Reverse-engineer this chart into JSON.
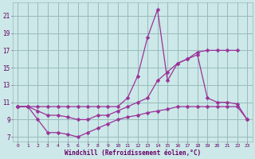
{
  "bg_color": "#cce8e8",
  "line_color": "#993399",
  "grid_color": "#99bbbb",
  "xlabel": "Windchill (Refroidissement éolien,°C)",
  "xlabel_color": "#660066",
  "tick_color": "#660066",
  "xlim": [
    -0.5,
    23.5
  ],
  "ylim": [
    6.5,
    22.5
  ],
  "yticks": [
    7,
    9,
    11,
    13,
    15,
    17,
    19,
    21
  ],
  "xticks": [
    0,
    1,
    2,
    3,
    4,
    5,
    6,
    7,
    8,
    9,
    10,
    11,
    12,
    13,
    14,
    15,
    16,
    17,
    18,
    19,
    20,
    21,
    22,
    23
  ],
  "line1_x": [
    0,
    1,
    2,
    3,
    4,
    5,
    6,
    7,
    8,
    9,
    10,
    11,
    12,
    13,
    14,
    15,
    16,
    17,
    18,
    19,
    20,
    21,
    22
  ],
  "line1_y": [
    10.5,
    10.5,
    10.5,
    10.5,
    10.5,
    10.5,
    10.5,
    10.5,
    10.5,
    10.5,
    10.5,
    11.5,
    14.0,
    18.5,
    21.7,
    13.5,
    15.5,
    16.0,
    16.8,
    17.0,
    17.0,
    17.0,
    17.0
  ],
  "line2_x": [
    0,
    1,
    2,
    3,
    4,
    5,
    6,
    7,
    8,
    9,
    10,
    11,
    12,
    13,
    14,
    15,
    16,
    17,
    18,
    19,
    20,
    21,
    22,
    23
  ],
  "line2_y": [
    10.5,
    10.5,
    10.0,
    9.5,
    9.5,
    9.3,
    9.0,
    9.0,
    9.5,
    9.5,
    10.0,
    10.5,
    11.0,
    11.5,
    13.5,
    14.5,
    15.5,
    16.0,
    16.5,
    11.5,
    11.0,
    11.0,
    10.8,
    9.0
  ],
  "line3_x": [
    0,
    1,
    2,
    3,
    4,
    5,
    6,
    7,
    8,
    9,
    10,
    11,
    12,
    13,
    14,
    15,
    16,
    17,
    18,
    19,
    20,
    21,
    22,
    23
  ],
  "line3_y": [
    10.5,
    10.5,
    9.0,
    7.5,
    7.5,
    7.3,
    7.0,
    7.5,
    8.0,
    8.5,
    9.0,
    9.3,
    9.5,
    9.8,
    10.0,
    10.2,
    10.5,
    10.5,
    10.5,
    10.5,
    10.5,
    10.5,
    10.5,
    9.0
  ]
}
